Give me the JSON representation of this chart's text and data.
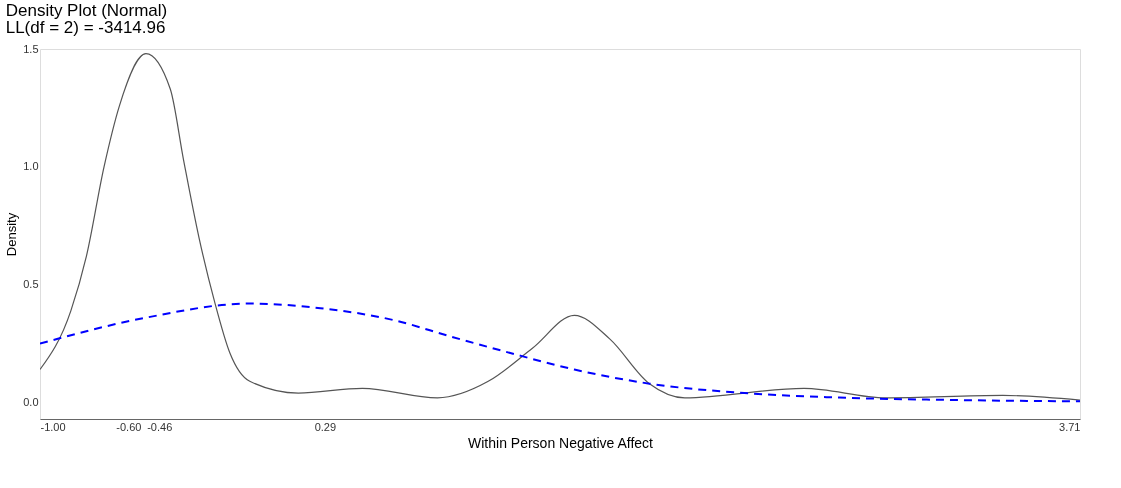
{
  "chart_data": {
    "type": "line",
    "title": "Density Plot (Normal)",
    "subtitle": "LL(df = 2) = -3414.96",
    "xlabel": "Within Person Negative Affect",
    "ylabel": "Density",
    "xlim": [
      -1.0,
      3.71
    ],
    "ylim": [
      -0.07,
      1.5
    ],
    "xticks": [
      {
        "value": -1.0,
        "label": "-1.00"
      },
      {
        "value": -0.6,
        "label": "-0.60"
      },
      {
        "value": -0.46,
        "label": "-0.46"
      },
      0.29,
      3.71
    ],
    "yticks": [
      {
        "value": 0,
        "label": "0.0"
      },
      0.5,
      {
        "value": 1,
        "label": "1.0"
      },
      1.5
    ],
    "grid": false,
    "marker": "none",
    "series": [
      {
        "color": "#555555",
        "line_style": "solid",
        "x": [
          -1.0,
          -0.86,
          -0.79,
          -0.71,
          -0.64,
          -0.52,
          -0.41,
          -0.35,
          -0.28,
          -0.21,
          -0.14,
          -0.05,
          0.17,
          0.46,
          0.8,
          1.03,
          1.23,
          1.42,
          1.58,
          1.76,
          1.92,
          2.46,
          2.83,
          3.36,
          3.71
        ],
        "values": [
          0.14,
          0.39,
          0.62,
          1.0,
          1.26,
          1.48,
          1.33,
          1.03,
          0.7,
          0.43,
          0.21,
          0.09,
          0.04,
          0.06,
          0.02,
          0.09,
          0.23,
          0.37,
          0.27,
          0.08,
          0.02,
          0.06,
          0.02,
          0.03,
          0.01
        ]
      },
      {
        "color": "#0000ff",
        "line_style": "dashed",
        "x": [
          -1.0,
          -0.52,
          -0.05,
          0.27,
          0.6,
          0.86,
          1.13,
          1.42,
          1.76,
          2.19,
          2.65,
          3.18,
          3.71
        ],
        "values": [
          0.25,
          0.36,
          0.42,
          0.4,
          0.35,
          0.28,
          0.21,
          0.14,
          0.08,
          0.04,
          0.02,
          0.01,
          0.005
        ]
      }
    ]
  }
}
